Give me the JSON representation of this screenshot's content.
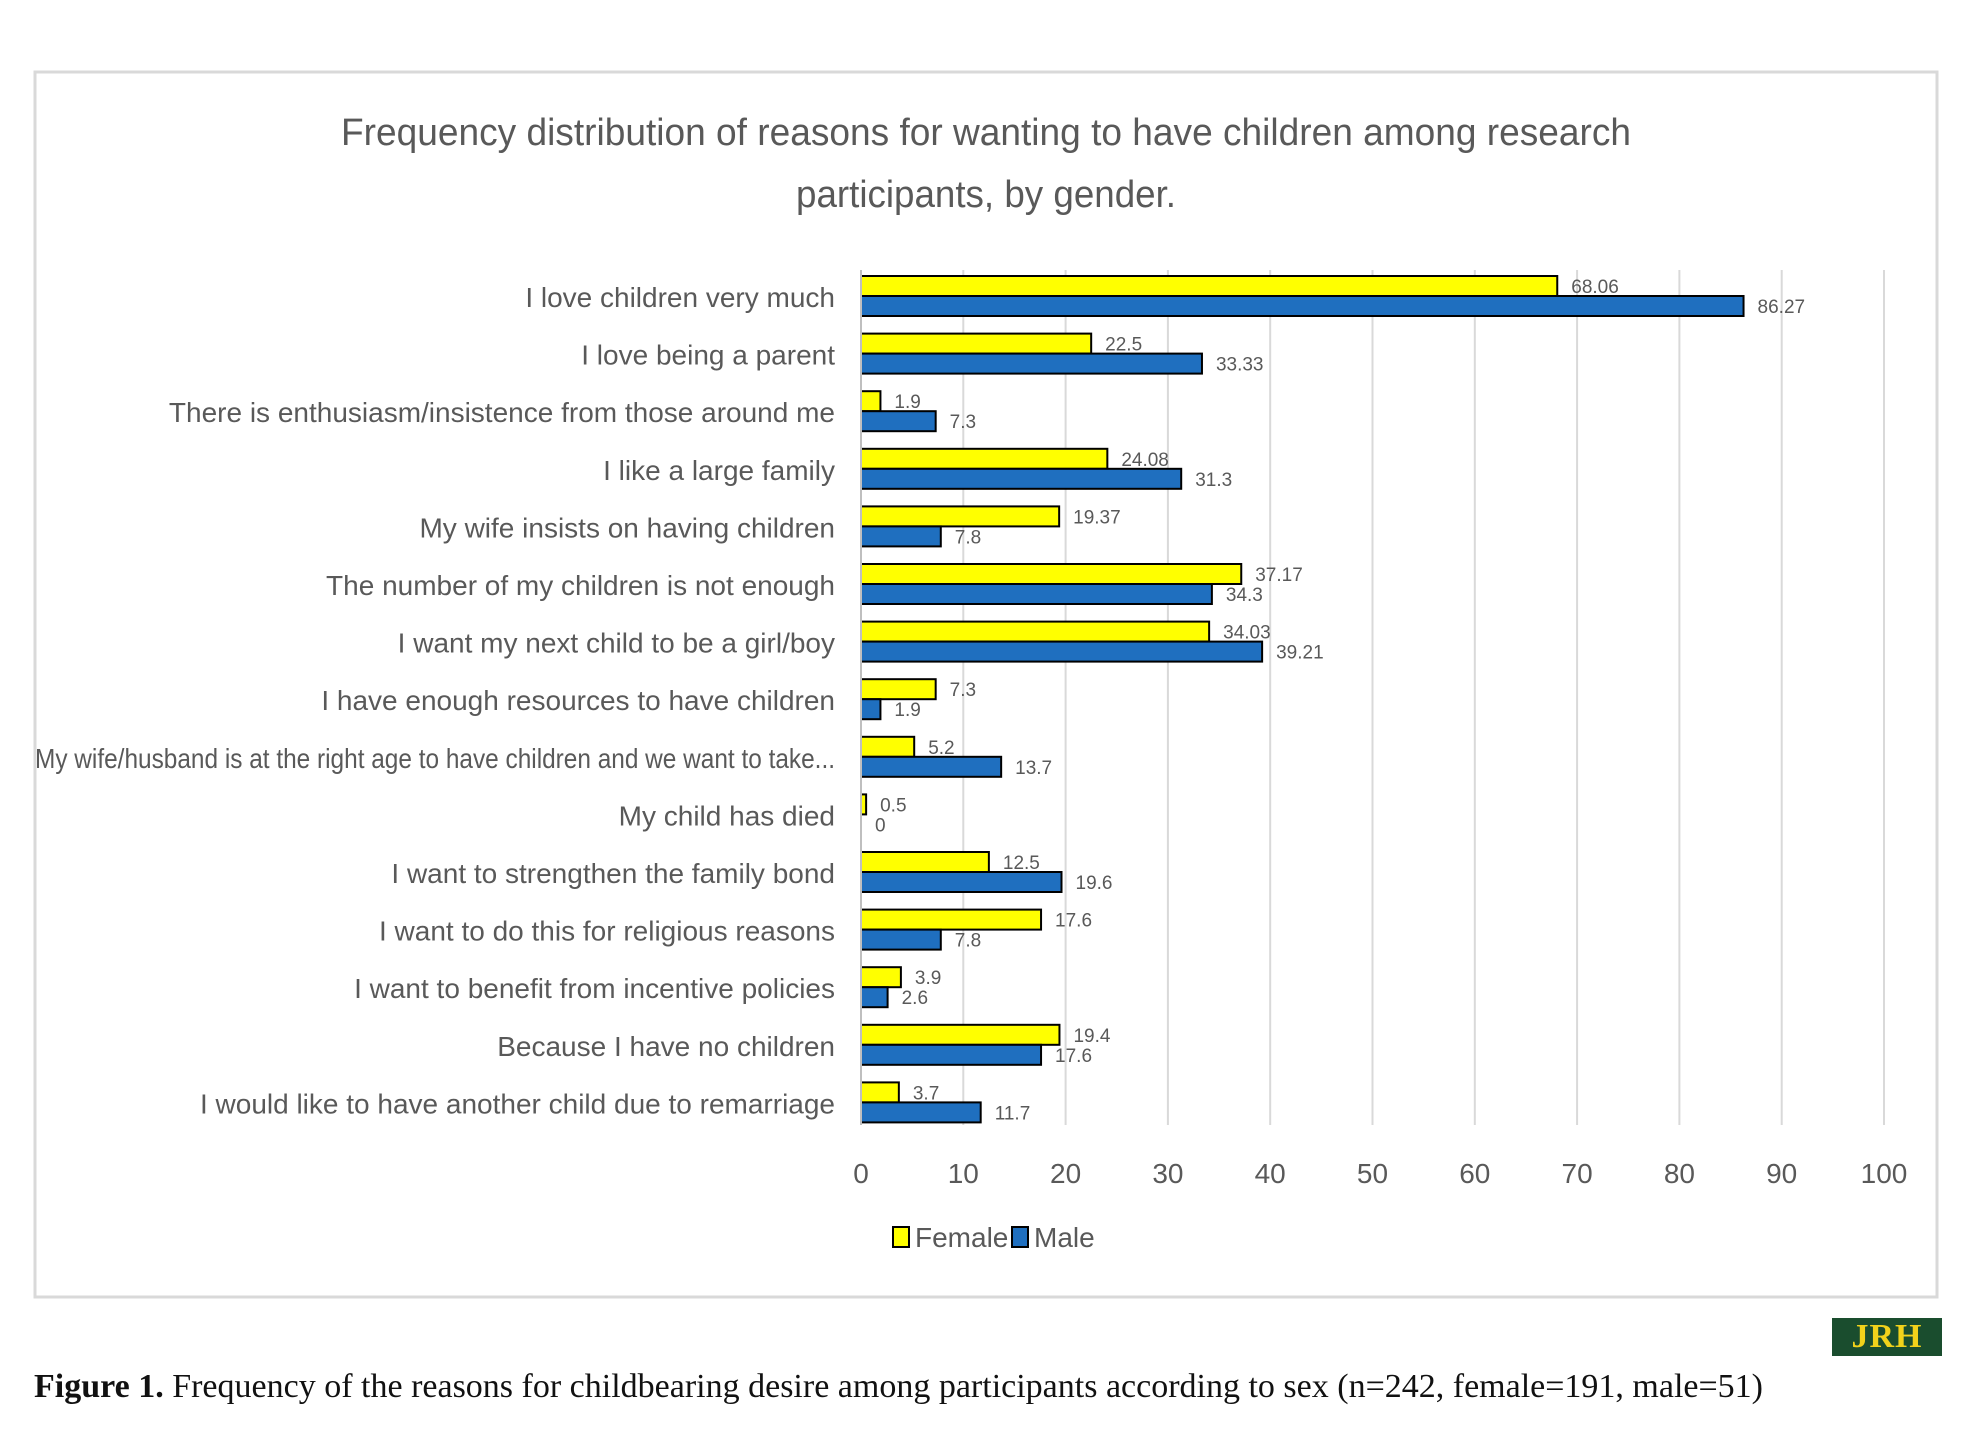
{
  "chart_data": {
    "type": "bar",
    "orientation": "horizontal",
    "title_lines": [
      "Frequency distribution of reasons for wanting to have children among research",
      "participants, by gender."
    ],
    "categories": [
      "I love children very much",
      "I love being a parent",
      "There is enthusiasm/insistence from those around me",
      "I like a large family",
      "My wife insists on having children",
      "The number of my children is not enough",
      "I want my next child to be a girl/boy",
      "I have enough resources to have children",
      "My wife/husband  is at the right age to have children and we want to take...",
      "My child has died",
      "I want to strengthen the family bond",
      "I want to do this for religious reasons",
      "I want to benefit from incentive policies",
      "Because I have no children",
      "I would like to have another child due to remarriage"
    ],
    "series": [
      {
        "name": "Female",
        "color": "#ffff00",
        "values": [
          68.06,
          22.5,
          1.9,
          24.08,
          19.37,
          37.17,
          34.03,
          7.3,
          5.2,
          0.5,
          12.5,
          17.6,
          3.9,
          19.4,
          3.7
        ]
      },
      {
        "name": "Male",
        "color": "#1f6fbf",
        "values": [
          86.27,
          33.33,
          7.3,
          31.3,
          7.8,
          34.3,
          39.21,
          1.9,
          13.7,
          0,
          19.6,
          7.8,
          2.6,
          17.6,
          11.7
        ]
      }
    ],
    "xticks": [
      "0",
      "10",
      "20",
      "30",
      "40",
      "50",
      "60",
      "70",
      "80",
      "90",
      "100"
    ],
    "xlim": [
      0,
      100
    ],
    "grid": true,
    "legend_position": "bottom",
    "colors": {
      "grid": "#d9d9d9",
      "text": "#595959",
      "border": "#d9d9d9",
      "bar_outline": "#000000"
    }
  },
  "caption": {
    "label": "Figure 1.",
    "text": " Frequency of the reasons for childbearing desire among participants according to sex (n=242, female=191, male=51)"
  },
  "logo_text": "JRH"
}
